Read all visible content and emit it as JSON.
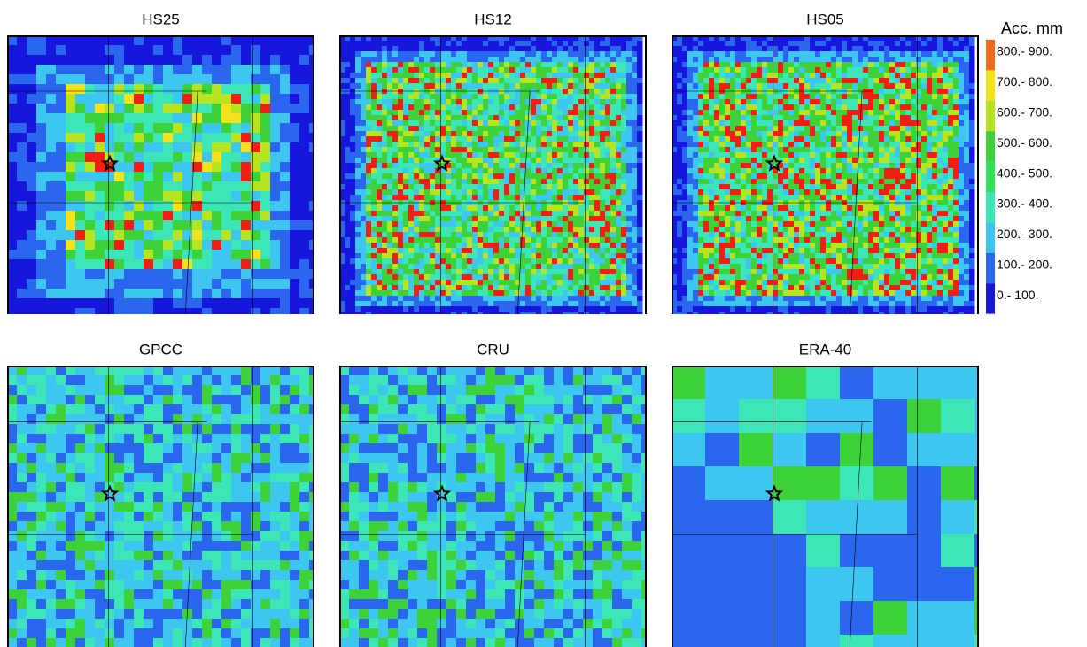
{
  "panels": [
    {
      "title": "HS25"
    },
    {
      "title": "HS12"
    },
    {
      "title": "HS05"
    },
    {
      "title": "GPCC"
    },
    {
      "title": "CRU"
    },
    {
      "title": "ERA-40"
    }
  ],
  "legend": {
    "title": "Acc. mm",
    "entries": [
      {
        "label": "800.- 900.",
        "color": "#ef6a1e"
      },
      {
        "label": "700.- 800.",
        "color": "#f4e21a"
      },
      {
        "label": "600.- 700.",
        "color": "#b6e41e"
      },
      {
        "label": "500.- 600.",
        "color": "#3ed23a"
      },
      {
        "label": "400.- 500.",
        "color": "#32e25a"
      },
      {
        "label": "300.- 400.",
        "color": "#3ce6b6"
      },
      {
        "label": "200.- 300.",
        "color": "#3cc6f0"
      },
      {
        "label": "100.- 200.",
        "color": "#2a66ee"
      },
      {
        "label": "0.- 100.",
        "color": "#1616dc"
      }
    ]
  }
}
